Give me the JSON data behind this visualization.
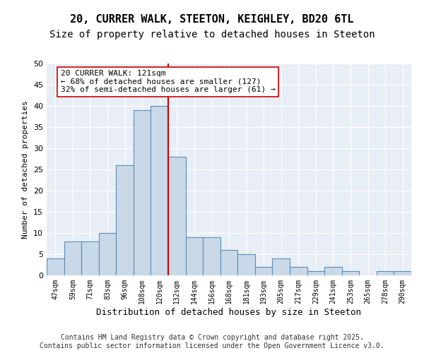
{
  "title_line1": "20, CURRER WALK, STEETON, KEIGHLEY, BD20 6TL",
  "title_line2": "Size of property relative to detached houses in Steeton",
  "xlabel": "Distribution of detached houses by size in Steeton",
  "ylabel": "Number of detached properties",
  "bin_labels": [
    "47sqm",
    "59sqm",
    "71sqm",
    "83sqm",
    "96sqm",
    "108sqm",
    "120sqm",
    "132sqm",
    "144sqm",
    "156sqm",
    "168sqm",
    "181sqm",
    "193sqm",
    "205sqm",
    "217sqm",
    "229sqm",
    "241sqm",
    "253sqm",
    "265sqm",
    "278sqm",
    "290sqm"
  ],
  "bar_values": [
    4,
    8,
    8,
    10,
    26,
    39,
    40,
    28,
    9,
    9,
    6,
    5,
    2,
    4,
    2,
    1,
    2,
    1,
    0,
    1,
    1
  ],
  "bar_color": "#c9d9e8",
  "bar_edge_color": "#5b8db8",
  "vline_color": "#cc0000",
  "annotation_text": "20 CURRER WALK: 121sqm\n← 68% of detached houses are smaller (127)\n32% of semi-detached houses are larger (61) →",
  "annotation_box_color": "#ffffff",
  "annotation_box_edge": "#cc0000",
  "ylim": [
    0,
    50
  ],
  "yticks": [
    0,
    5,
    10,
    15,
    20,
    25,
    30,
    35,
    40,
    45,
    50
  ],
  "background_color": "#e8eef5",
  "footer_text": "Contains HM Land Registry data © Crown copyright and database right 2025.\nContains public sector information licensed under the Open Government Licence v3.0.",
  "title_fontsize": 11,
  "subtitle_fontsize": 10,
  "annotation_fontsize": 8,
  "footer_fontsize": 7
}
